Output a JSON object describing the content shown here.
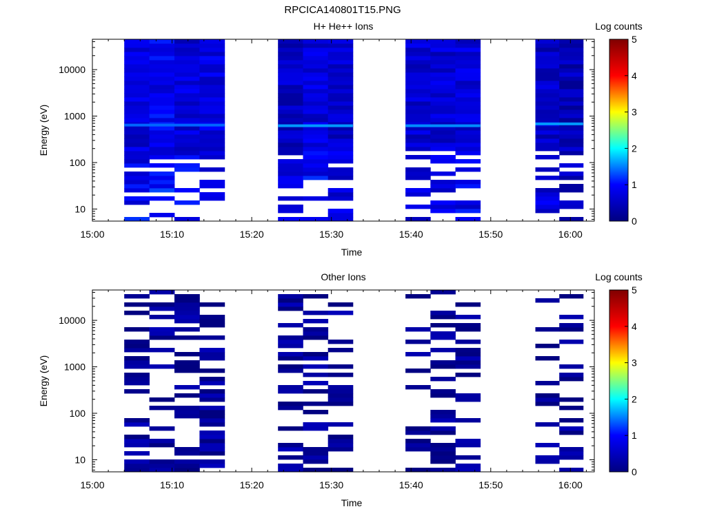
{
  "figure_title": "RPCICA140801T15.PNG",
  "colorscale": {
    "stops": [
      "#000080",
      "#0000ff",
      "#00ffff",
      "#ffff00",
      "#ff0000",
      "#800000"
    ],
    "gap_color": "#ffffff"
  },
  "chart_data": [
    {
      "type": "heatmap",
      "title": "H+ He++ Ions",
      "xlabel": "Time",
      "ylabel": "Energy (eV)",
      "y_scale": "log",
      "y_range_eV": [
        5.5,
        45000
      ],
      "x_range": [
        "15:00",
        "16:03"
      ],
      "x_tick_labels": [
        "15:00",
        "15:10",
        "15:20",
        "15:30",
        "15:40",
        "15:50",
        "16:00"
      ],
      "y_tick_labels": [
        "10",
        "100",
        "1000",
        "10000"
      ],
      "colorbar": {
        "label": "Log counts",
        "range": [
          0,
          5
        ],
        "ticks": [
          "0",
          "1",
          "2",
          "3",
          "4",
          "5"
        ]
      },
      "bands": [
        {
          "start": "15:04",
          "end": "15:16.6",
          "steps": 4,
          "mean_log_counts": [
            0.7,
            0.85,
            0.7,
            0.75
          ],
          "cold_start_eV": 150,
          "density": 1.0
        },
        {
          "start": "15:23.3",
          "end": "15:32.7",
          "steps": 3,
          "mean_log_counts": [
            0.55,
            0.7,
            0.6
          ],
          "cold_start_eV": 200,
          "density": 1.0
        },
        {
          "start": "15:39.3",
          "end": "15:48.7",
          "steps": 3,
          "mean_log_counts": [
            0.65,
            0.65,
            0.7
          ],
          "cold_start_eV": 200,
          "density": 1.0
        },
        {
          "start": "15:55.6",
          "end": "16:01.6",
          "steps": 2,
          "mean_log_counts": [
            0.55,
            0.45
          ],
          "cold_start_eV": 200,
          "density": 1.0
        }
      ],
      "highlights_eV": [
        {
          "time": "15:04-15:16.6",
          "energy": 640,
          "log_counts": 1.4
        },
        {
          "time": "15:23.3-15:32.7",
          "energy": 620,
          "log_counts": 1.6
        },
        {
          "time": "15:39.3-15:48.7",
          "energy": 620,
          "log_counts": 1.55
        },
        {
          "time": "15:55.6-16:01.6",
          "energy": 680,
          "log_counts": 1.6
        }
      ]
    },
    {
      "type": "heatmap",
      "title": "Other Ions",
      "xlabel": "Time",
      "ylabel": "Energy (eV)",
      "y_scale": "log",
      "y_range_eV": [
        5.5,
        45000
      ],
      "x_range": [
        "15:00",
        "16:03"
      ],
      "x_tick_labels": [
        "15:00",
        "15:10",
        "15:20",
        "15:30",
        "15:40",
        "15:50",
        "16:00"
      ],
      "y_tick_labels": [
        "10",
        "100",
        "1000",
        "10000"
      ],
      "colorbar": {
        "label": "Log counts",
        "range": [
          0,
          5
        ],
        "ticks": [
          "0",
          "1",
          "2",
          "3",
          "4",
          "5"
        ]
      },
      "bands": [
        {
          "start": "15:04",
          "end": "15:16.6",
          "steps": 4,
          "mean_log_counts": [
            0.2,
            0.15,
            0.15,
            0.2
          ],
          "cold_start_eV": 60,
          "density": 0.45
        },
        {
          "start": "15:23.3",
          "end": "15:32.7",
          "steps": 3,
          "mean_log_counts": [
            0.2,
            0.15,
            0.2
          ],
          "cold_start_eV": 60,
          "density": 0.4
        },
        {
          "start": "15:39.3",
          "end": "15:48.7",
          "steps": 3,
          "mean_log_counts": [
            0.15,
            0.15,
            0.2
          ],
          "cold_start_eV": 60,
          "density": 0.3
        },
        {
          "start": "15:55.6",
          "end": "16:01.6",
          "steps": 2,
          "mean_log_counts": [
            0.15,
            0.15
          ],
          "cold_start_eV": 250,
          "density": 0.2
        }
      ]
    }
  ]
}
